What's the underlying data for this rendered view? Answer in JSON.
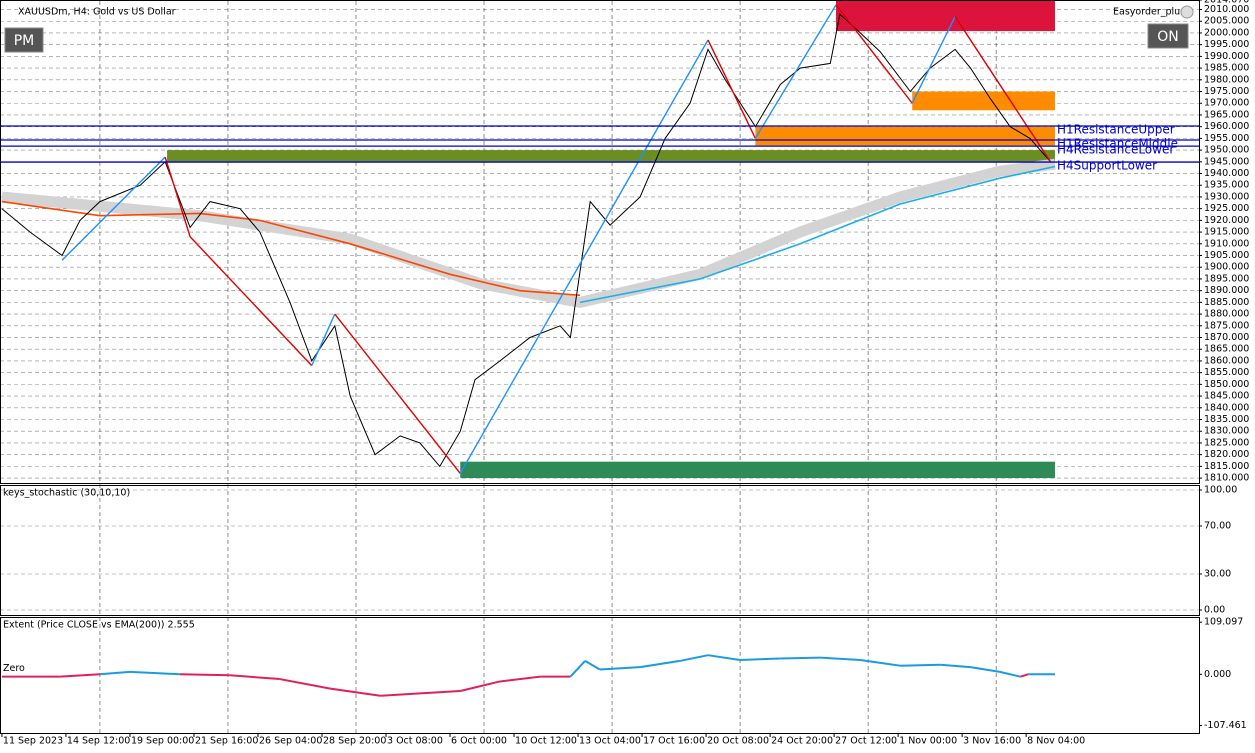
{
  "header": {
    "symbol": "XAUUSDm, H4:  Gold vs US Dollar",
    "expert": "Easyorder_plus",
    "buttons": [
      "PM",
      "ON"
    ]
  },
  "chart_data": [
    {
      "type": "line",
      "xlim": [
        -0.03,
        18.7
      ],
      "xticks": [
        {
          "value": 0,
          "label": "11 Sep 2023"
        },
        {
          "value": 1,
          "label": "14 Sep 12:00"
        },
        {
          "value": 2,
          "label": "19 Sep 00:00"
        },
        {
          "value": 3,
          "label": "21 Sep 16:00"
        },
        {
          "value": 4,
          "label": "26 Sep 04:00"
        },
        {
          "value": 5,
          "label": "28 Sep 20:00"
        },
        {
          "value": 6,
          "label": "3 Oct 08:00"
        },
        {
          "value": 7,
          "label": "6 Oct 00:00"
        },
        {
          "value": 8,
          "label": "10 Oct 12:00"
        },
        {
          "value": 9,
          "label": "13 Oct 04:00"
        },
        {
          "value": 10,
          "label": "17 Oct 16:00"
        },
        {
          "value": 11,
          "label": "20 Oct 08:00"
        },
        {
          "value": 12,
          "label": "24 Oct 20:00"
        },
        {
          "value": 13,
          "label": "27 Oct 12:00"
        },
        {
          "value": 14,
          "label": "1 Nov 00:00"
        },
        {
          "value": 15,
          "label": "3 Nov 16:00"
        },
        {
          "value": 16,
          "label": "8 Nov 04:00"
        }
      ],
      "ylim": [
        1807.9,
        2014.07
      ],
      "yticks": [
        {
          "value": 1810,
          "label": "1810.000"
        },
        {
          "value": 1815,
          "label": "1815.000"
        },
        {
          "value": 1820,
          "label": "1820.000"
        },
        {
          "value": 1825,
          "label": "1825.000"
        },
        {
          "value": 1830,
          "label": "1830.000"
        },
        {
          "value": 1835,
          "label": "1835.000"
        },
        {
          "value": 1840,
          "label": "1840.000"
        },
        {
          "value": 1845,
          "label": "1845.000"
        },
        {
          "value": 1850,
          "label": "1850.000"
        },
        {
          "value": 1855,
          "label": "1855.000"
        },
        {
          "value": 1860,
          "label": "1860.000"
        },
        {
          "value": 1865,
          "label": "1865.000"
        },
        {
          "value": 1870,
          "label": "1870.000"
        },
        {
          "value": 1875,
          "label": "1875.000"
        },
        {
          "value": 1880,
          "label": "1880.000"
        },
        {
          "value": 1885,
          "label": "1885.000"
        },
        {
          "value": 1890,
          "label": "1890.000"
        },
        {
          "value": 1895,
          "label": "1895.000"
        },
        {
          "value": 1900,
          "label": "1900.000"
        },
        {
          "value": 1905,
          "label": "1905.000"
        },
        {
          "value": 1910,
          "label": "1910.000"
        },
        {
          "value": 1915,
          "label": "1915.000"
        },
        {
          "value": 1920,
          "label": "1920.000"
        },
        {
          "value": 1925,
          "label": "1925.000"
        },
        {
          "value": 1930,
          "label": "1930.000"
        },
        {
          "value": 1935,
          "label": "1935.000"
        },
        {
          "value": 1940,
          "label": "1940.000"
        },
        {
          "value": 1945,
          "label": "1945.000"
        },
        {
          "value": 1950,
          "label": "1950.000"
        },
        {
          "value": 1955,
          "label": "1955.000"
        },
        {
          "value": 1960,
          "label": "1960.000"
        },
        {
          "value": 1965,
          "label": "1965.000"
        },
        {
          "value": 1970,
          "label": "1970.000"
        },
        {
          "value": 1975,
          "label": "1975.000"
        },
        {
          "value": 1980,
          "label": "1980.000"
        },
        {
          "value": 1985,
          "label": "1985.000"
        },
        {
          "value": 1990,
          "label": "1990.000"
        },
        {
          "value": 1995,
          "label": "1995.000"
        },
        {
          "value": 2000,
          "label": "2000.000"
        },
        {
          "value": 2005,
          "label": "2005.000"
        },
        {
          "value": 2010,
          "label": "2010.000"
        },
        {
          "value": 2014.07,
          "label": "2014.070"
        }
      ],
      "grid": true,
      "zones": [
        {
          "color": "#dc143c",
          "x": [
            13.03,
            16.45
          ],
          "y": [
            2000.8,
            2014.07
          ]
        },
        {
          "color": "#ff8c00",
          "x": [
            14.22,
            16.45
          ],
          "y": [
            1967,
            1975
          ]
        },
        {
          "color": "#ff8c00",
          "x": [
            11.77,
            16.45
          ],
          "y": [
            1952,
            1960
          ]
        },
        {
          "color": "#6b8e23",
          "x": [
            2.58,
            16.45
          ],
          "y": [
            1945,
            1950
          ]
        },
        {
          "color": "#2e8b57",
          "x": [
            7.16,
            16.45
          ],
          "y": [
            1810,
            1817
          ]
        }
      ],
      "band": {
        "color": "#d3d3d3",
        "x": [
          0,
          3.09,
          5.44,
          7.47,
          9.03,
          10.91,
          12.47,
          14.03,
          15.59,
          16.45
        ],
        "values": [
          1930,
          1922,
          1912,
          1893,
          1885,
          1897,
          1915,
          1930,
          1941,
          1944
        ]
      },
      "series": [
        {
          "color": "#ff4500",
          "x": [
            0,
            1.53,
            3.09,
            4.03,
            5.44,
            7,
            8.09,
            9.03
          ],
          "values": [
            1928,
            1922,
            1923,
            1920,
            1910,
            1897,
            1890,
            1888
          ]
        },
        {
          "color": "#1ab0e8",
          "x": [
            9.03,
            10.91,
            12.47,
            14.03,
            15.59,
            16.45
          ],
          "values": [
            1885,
            1895,
            1910,
            1927,
            1938,
            1943
          ]
        },
        {
          "color": "#000000",
          "x": [
            0,
            0.44,
            0.94,
            1.22,
            1.53,
            2.16,
            2.55,
            2.94,
            3.25,
            3.72,
            4.03,
            4.5,
            4.84,
            5.2,
            5.44,
            5.83,
            6.22,
            6.53,
            6.84,
            7.16,
            7.39,
            7.78,
            8.25,
            8.72,
            8.88,
            9.19,
            9.5,
            9.97,
            10.36,
            10.75,
            11.03,
            11.3,
            11.77,
            12.16,
            12.47,
            12.94,
            13.09,
            13.41,
            13.72,
            14.19,
            14.5,
            14.89,
            15.13,
            15.44,
            15.75,
            16.06,
            16.38
          ],
          "values": [
            1925,
            1915,
            1905,
            1920,
            1928,
            1935,
            1945,
            1917,
            1928,
            1925,
            1915,
            1885,
            1860,
            1875,
            1845,
            1820,
            1828,
            1825,
            1815,
            1830,
            1852,
            1860,
            1870,
            1875,
            1870,
            1928,
            1918,
            1930,
            1955,
            1970,
            1993,
            1980,
            1960,
            1978,
            1985,
            1987,
            2008,
            2000,
            1992,
            1975,
            1985,
            1993,
            1985,
            1972,
            1960,
            1955,
            1945
          ]
        }
      ],
      "zigzag": {
        "up_color": "#1e90ff",
        "down_color": "#e00000",
        "x": [
          0.94,
          2.55,
          2.94,
          4.84,
          5.2,
          7.16,
          11.03,
          11.77,
          13.03,
          14.22,
          14.89,
          16.38
        ],
        "values": [
          1903,
          1947,
          1913,
          1858,
          1880,
          1812,
          1997,
          1955,
          2012,
          1970,
          2007,
          1945
        ]
      },
      "level_color": "#0000cc",
      "levels": [
        {
          "label": "H1ResistanceUpper",
          "value": 1960.3
        },
        {
          "label": "H1ResistanceMiddle",
          "value": 1954.3
        },
        {
          "label": "H4ResistanceLower",
          "value": 1951.7
        },
        {
          "label": "H4SupportLower",
          "value": 1944.9
        }
      ]
    },
    {
      "type": "stochastic",
      "title": "keys_stochastic (30,10,10)",
      "ylim": [
        -4.17,
        104.17
      ],
      "yticks": [
        {
          "value": 100,
          "label": "100.00"
        },
        {
          "value": 70,
          "label": "70.00"
        },
        {
          "value": 30,
          "label": "30.00"
        },
        {
          "value": 0,
          "label": "0.00"
        }
      ],
      "grid": true
    },
    {
      "type": "extent",
      "title": "Extent (Price CLOSE vs EMA(200)) 2.555",
      "zero_label": "Zero",
      "xlim": [
        -0.03,
        18.7
      ],
      "ylim": [
        -123,
        120
      ],
      "yticks": [
        {
          "value": 109.097,
          "label": "109.097"
        },
        {
          "value": 0,
          "label": "0.000"
        },
        {
          "value": -107.461,
          "label": "-107.461"
        }
      ],
      "positive_color": "#1a9be0",
      "negative_color": "#e0205a",
      "x": [
        0,
        0.91,
        1.53,
        2,
        2.78,
        3.56,
        4.34,
        5.13,
        5.91,
        6.53,
        7.16,
        7.78,
        8.41,
        8.88,
        9.11,
        9.34,
        9.97,
        10.59,
        11.03,
        11.53,
        12.16,
        12.78,
        13.41,
        14.03,
        14.66,
        15.13,
        15.59,
        15.91,
        16.03,
        16.45
      ],
      "values": [
        -5,
        -5,
        0,
        5,
        0,
        -2,
        -10,
        -30,
        -45,
        -40,
        -35,
        -15,
        -5,
        -5,
        28,
        10,
        15,
        28,
        40,
        30,
        33,
        35,
        30,
        18,
        20,
        15,
        5,
        -5,
        0,
        0
      ]
    }
  ]
}
